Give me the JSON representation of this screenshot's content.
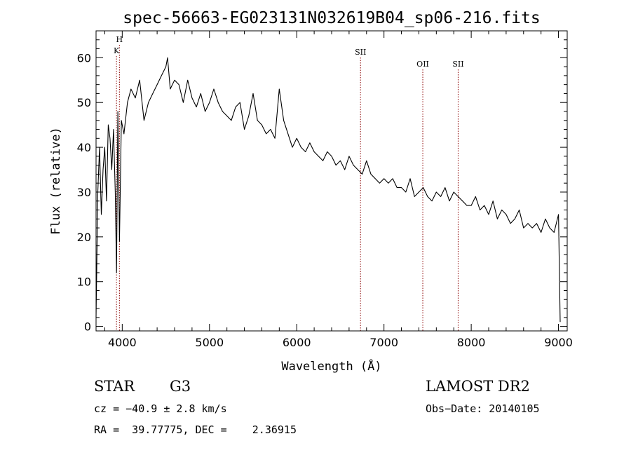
{
  "chart_data": {
    "type": "line",
    "title": "spec-56663-EG023131N032619B04_sp06-216.fits",
    "xlabel": "Wavelength (Å)",
    "ylabel": "Flux (relative)",
    "xlim": [
      3700,
      9100
    ],
    "ylim": [
      -1,
      66
    ],
    "xticks": [
      4000,
      5000,
      6000,
      7000,
      8000,
      9000
    ],
    "yticks": [
      0,
      10,
      20,
      30,
      40,
      50,
      60
    ],
    "grid": false,
    "series": [
      {
        "x": [
          3700,
          3720,
          3740,
          3760,
          3780,
          3800,
          3820,
          3840,
          3860,
          3880,
          3900,
          3920,
          3935,
          3950,
          3968,
          3990,
          4020,
          4060,
          4100,
          4150,
          4200,
          4250,
          4300,
          4350,
          4400,
          4450,
          4500,
          4520,
          4550,
          4600,
          4650,
          4700,
          4750,
          4800,
          4850,
          4900,
          4950,
          5000,
          5050,
          5100,
          5150,
          5200,
          5250,
          5300,
          5350,
          5400,
          5450,
          5500,
          5550,
          5600,
          5650,
          5700,
          5750,
          5800,
          5850,
          5900,
          5950,
          6000,
          6050,
          6100,
          6150,
          6200,
          6250,
          6300,
          6350,
          6400,
          6450,
          6500,
          6550,
          6600,
          6650,
          6700,
          6750,
          6800,
          6850,
          6900,
          6950,
          7000,
          7050,
          7100,
          7150,
          7200,
          7250,
          7300,
          7350,
          7400,
          7450,
          7500,
          7550,
          7600,
          7650,
          7700,
          7750,
          7800,
          7850,
          7900,
          7950,
          8000,
          8050,
          8100,
          8150,
          8200,
          8250,
          8300,
          8350,
          8400,
          8450,
          8500,
          8550,
          8600,
          8650,
          8700,
          8750,
          8800,
          8850,
          8900,
          8950,
          9000,
          9020
        ],
        "y": [
          2,
          30,
          40,
          25,
          35,
          40,
          28,
          45,
          42,
          35,
          44,
          30,
          12,
          48,
          19,
          46,
          43,
          50,
          53,
          51,
          55,
          46,
          50,
          52,
          54,
          56,
          58,
          60,
          53,
          55,
          54,
          50,
          55,
          51,
          49,
          52,
          48,
          50,
          53,
          50,
          48,
          47,
          46,
          49,
          50,
          44,
          47,
          52,
          46,
          45,
          43,
          44,
          42,
          53,
          46,
          43,
          40,
          42,
          40,
          39,
          41,
          39,
          38,
          37,
          39,
          38,
          36,
          37,
          35,
          38,
          36,
          35,
          34,
          37,
          34,
          33,
          32,
          33,
          32,
          33,
          31,
          31,
          30,
          33,
          29,
          30,
          31,
          29,
          28,
          30,
          29,
          31,
          28,
          30,
          29,
          28,
          27,
          27,
          29,
          26,
          27,
          25,
          28,
          24,
          26,
          25,
          23,
          24,
          26,
          22,
          23,
          22,
          23,
          21,
          24,
          22,
          21,
          25,
          1
        ]
      }
    ],
    "line_markers": [
      {
        "label": "H",
        "x": 3968
      },
      {
        "label": "K",
        "x": 3934
      },
      {
        "label": "SII",
        "x": 6731
      },
      {
        "label": "OII",
        "x": 7445
      },
      {
        "label": "SII",
        "x": 7850
      }
    ]
  },
  "info": {
    "object_class": "STAR",
    "subclass": "G3",
    "survey": "LAMOST DR2",
    "cz": "cz = −40.9 ± 2.8 km/s",
    "obs_date": "Obs−Date: 20140105",
    "coords": "RA =  39.77775, DEC =    2.36915"
  },
  "colors": {
    "spectrum": "#000000",
    "marker": "#8b0000",
    "axis": "#000000",
    "background": "#ffffff"
  }
}
